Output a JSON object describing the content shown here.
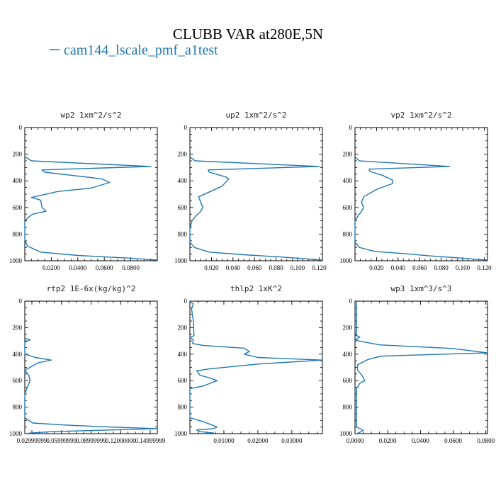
{
  "title": "CLUBB VAR at280E,5N",
  "legend": {
    "label": "cam144_lscale_pmf_a1test",
    "color": "#1f77b4"
  },
  "chart_data": [
    {
      "type": "line",
      "title": "wp2  1xm^2/s^2",
      "ylim": [
        1000,
        0
      ],
      "yticks": [
        "0",
        "200",
        "400",
        "600",
        "800",
        "1000"
      ],
      "xlim": [
        0,
        0.1
      ],
      "xticks": [
        0.02,
        0.04,
        0.06,
        0.08
      ],
      "xticklabels": [
        "0.0200",
        "0.0400",
        "0.0600",
        "0.0800"
      ],
      "series": [
        {
          "color": "#1f77b4",
          "points": [
            [
              0,
              220
            ],
            [
              0.005,
              250
            ],
            [
              0.095,
              292
            ],
            [
              0.013,
              318
            ],
            [
              0.015,
              335
            ],
            [
              0.058,
              385
            ],
            [
              0.064,
              412
            ],
            [
              0.05,
              455
            ],
            [
              0.025,
              480
            ],
            [
              0.005,
              525
            ],
            [
              0.012,
              545
            ],
            [
              0.013,
              600
            ],
            [
              0.016,
              628
            ],
            [
              0.006,
              650
            ],
            [
              0.002,
              680
            ],
            [
              0,
              710
            ],
            [
              0,
              840
            ],
            [
              0.002,
              890
            ],
            [
              0.012,
              935
            ],
            [
              0.04,
              960
            ],
            [
              0.078,
              980
            ],
            [
              0.1,
              995
            ]
          ]
        }
      ]
    },
    {
      "type": "line",
      "title": "up2  1xm^2/s^2",
      "ylim": [
        1000,
        0
      ],
      "yticks": [
        "0",
        "200",
        "400",
        "600",
        "800",
        "1000"
      ],
      "xlim": [
        0,
        0.123
      ],
      "xticks": [
        0.02,
        0.04,
        0.06,
        0.08,
        0.1,
        0.12
      ],
      "xticklabels": [
        "0.020",
        "0.040",
        "0.060",
        "0.080",
        "0.100",
        "0.120"
      ],
      "series": [
        {
          "color": "#1f77b4",
          "points": [
            [
              0,
              220
            ],
            [
              0.005,
              250
            ],
            [
              0.12,
              292
            ],
            [
              0.017,
              318
            ],
            [
              0.018,
              335
            ],
            [
              0.033,
              370
            ],
            [
              0.036,
              385
            ],
            [
              0.03,
              440
            ],
            [
              0.008,
              520
            ],
            [
              0.01,
              560
            ],
            [
              0.012,
              600
            ],
            [
              0.01,
              630
            ],
            [
              0.006,
              660
            ],
            [
              0.002,
              700
            ],
            [
              0,
              760
            ],
            [
              0,
              860
            ],
            [
              0.004,
              900
            ],
            [
              0.018,
              935
            ],
            [
              0.05,
              955
            ],
            [
              0.085,
              972
            ],
            [
              0.123,
              995
            ]
          ]
        }
      ]
    },
    {
      "type": "line",
      "title": "vp2  1xm^2/s^2",
      "ylim": [
        1000,
        0
      ],
      "yticks": [
        "0",
        "200",
        "400",
        "600",
        "800",
        "1000"
      ],
      "xlim": [
        0,
        0.123
      ],
      "xticks": [
        0.02,
        0.04,
        0.06,
        0.08,
        0.1,
        0.12
      ],
      "xticklabels": [
        "0.020",
        "0.040",
        "0.060",
        "0.080",
        "0.100",
        "0.120"
      ],
      "series": [
        {
          "color": "#1f77b4",
          "points": [
            [
              0,
              220
            ],
            [
              0.004,
              250
            ],
            [
              0.088,
              292
            ],
            [
              0.013,
              312
            ],
            [
              0.014,
              330
            ],
            [
              0.026,
              360
            ],
            [
              0.035,
              395
            ],
            [
              0.035,
              420
            ],
            [
              0.02,
              465
            ],
            [
              0.008,
              520
            ],
            [
              0.006,
              560
            ],
            [
              0.008,
              600
            ],
            [
              0.006,
              630
            ],
            [
              0.003,
              660
            ],
            [
              0,
              700
            ],
            [
              0,
              860
            ],
            [
              0.004,
              900
            ],
            [
              0.018,
              930
            ],
            [
              0.048,
              948
            ],
            [
              0.068,
              962
            ],
            [
              0.09,
              975
            ],
            [
              0.123,
              995
            ]
          ]
        }
      ]
    },
    {
      "type": "line",
      "title": "rtp2  1E-6x(kg/kg)^2",
      "ylim": [
        1000,
        0
      ],
      "yticks": [
        "0",
        "200",
        "400",
        "600",
        "800",
        "1000"
      ],
      "xlim": [
        0,
        1
      ],
      "xticklabels": [
        "0.02999999",
        "0.05999999",
        "0.08999999",
        "0.12000000",
        "0.14999999"
      ],
      "series": [
        {
          "color": "#1f77b4",
          "points": [
            [
              0,
              280
            ],
            [
              0.04,
              292
            ],
            [
              0,
              310
            ],
            [
              0,
              400
            ],
            [
              0.08,
              425
            ],
            [
              0.2,
              445
            ],
            [
              0.1,
              465
            ],
            [
              0.04,
              500
            ],
            [
              0,
              520
            ],
            [
              0.03,
              560
            ],
            [
              0.04,
              600
            ],
            [
              0.02,
              650
            ],
            [
              0,
              700
            ],
            [
              0,
              880
            ],
            [
              0.06,
              920
            ],
            [
              0.3,
              935
            ],
            [
              0.6,
              948
            ],
            [
              1.0,
              962
            ],
            [
              0.55,
              975
            ],
            [
              0.2,
              985
            ],
            [
              0.05,
              995
            ],
            [
              0,
              1000
            ]
          ]
        }
      ]
    },
    {
      "type": "line",
      "title": "thlp2  1xK^2",
      "ylim": [
        1000,
        0
      ],
      "yticks": [
        "0",
        "200",
        "400",
        "600",
        "800",
        "1000"
      ],
      "xlim": [
        0,
        0.039
      ],
      "xticks": [
        0.01,
        0.02,
        0.03
      ],
      "xticklabels": [
        "0.01000",
        "0.02000",
        "0.03000"
      ],
      "series": [
        {
          "color": "#1f77b4",
          "points": [
            [
              0,
              5
            ],
            [
              0.001,
              20
            ],
            [
              0.0005,
              60
            ],
            [
              0.001,
              150
            ],
            [
              0.0012,
              260
            ],
            [
              0,
              275
            ],
            [
              0.001,
              290
            ],
            [
              0.0008,
              320
            ],
            [
              0.004,
              335
            ],
            [
              0.016,
              355
            ],
            [
              0.0175,
              380
            ],
            [
              0.016,
              400
            ],
            [
              0.02,
              425
            ],
            [
              0.039,
              445
            ],
            [
              0.02,
              475
            ],
            [
              0.006,
              510
            ],
            [
              0.002,
              525
            ],
            [
              0.003,
              560
            ],
            [
              0.006,
              580
            ],
            [
              0.008,
              600
            ],
            [
              0.006,
              620
            ],
            [
              0.004,
              640
            ],
            [
              0,
              660
            ],
            [
              0,
              880
            ],
            [
              0.004,
              910
            ],
            [
              0.008,
              950
            ],
            [
              0.007,
              962
            ],
            [
              0.002,
              972
            ],
            [
              0.003,
              985
            ],
            [
              0.007,
              995
            ]
          ]
        }
      ]
    },
    {
      "type": "line",
      "title": "wp3  1xm^3/s^3",
      "ylim": [
        1000,
        0
      ],
      "yticks": [
        "0",
        "200",
        "400",
        "600",
        "800",
        "1000"
      ],
      "xlim": [
        0,
        0.081
      ],
      "xticks": [
        0,
        0.02,
        0.04,
        0.06,
        0.08
      ],
      "xticklabels": [
        "0.0000",
        "0.0200",
        "0.0400",
        "0.0600",
        "0.0800"
      ],
      "series": [
        {
          "color": "#1f77b4",
          "points": [
            [
              0.001,
              0
            ],
            [
              0.001,
              240
            ],
            [
              0.0005,
              258
            ],
            [
              0.003,
              270
            ],
            [
              0.0005,
              290
            ],
            [
              0.002,
              300
            ],
            [
              0.015,
              330
            ],
            [
              0.06,
              358
            ],
            [
              0.081,
              390
            ],
            [
              0.016,
              415
            ],
            [
              0.008,
              440
            ],
            [
              0.0015,
              480
            ],
            [
              0.0015,
              520
            ],
            [
              0.004,
              555
            ],
            [
              0.006,
              600
            ],
            [
              0.003,
              620
            ],
            [
              0.001,
              660
            ],
            [
              0.001,
              800
            ],
            [
              0.001,
              950
            ],
            [
              0.005,
              975
            ],
            [
              0.003,
              990
            ],
            [
              0.001,
              1000
            ]
          ]
        }
      ]
    }
  ]
}
